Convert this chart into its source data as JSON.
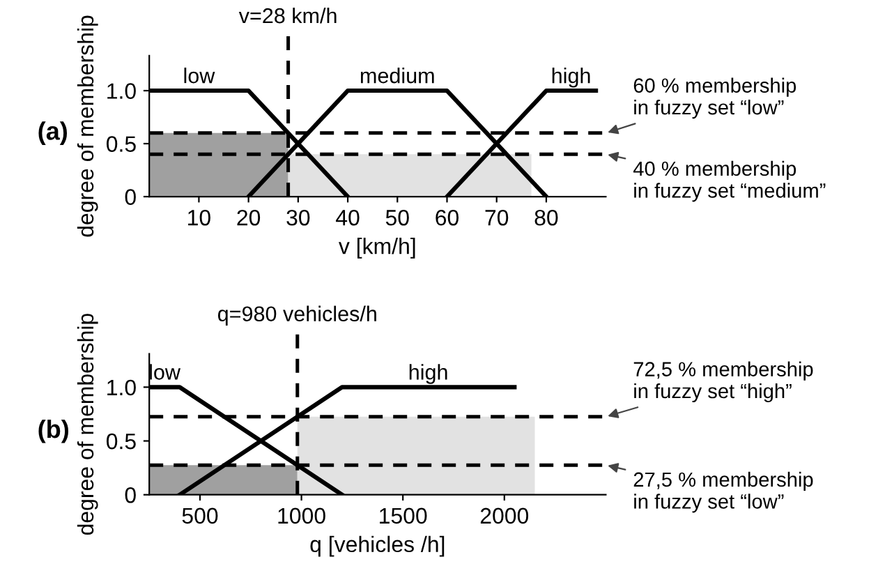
{
  "chart_data": [
    {
      "type": "line",
      "xlabel": "v [km/h]",
      "ylabel": "degree of membership",
      "xlim": [
        0,
        92
      ],
      "xticks": [
        10,
        20,
        30,
        40,
        50,
        60,
        70,
        80
      ],
      "ylim": [
        0,
        1.33
      ],
      "yticks": [
        0,
        0.5,
        {
          "value": 1,
          "label": "1.0"
        }
      ],
      "grid": false,
      "line_style": "solid",
      "marker": "none",
      "series": [
        {
          "type": "area",
          "color": "#a0a0a0",
          "x": [
            0,
            28
          ],
          "values": [
            0.6,
            0.6
          ]
        },
        {
          "type": "area",
          "color": "#e2e2e2",
          "x": [
            28,
            77
          ],
          "values": [
            0.4,
            0.4
          ]
        },
        {
          "name": "low",
          "color": "#000000",
          "x": [
            0,
            20,
            40
          ],
          "values": [
            1,
            1,
            0
          ]
        },
        {
          "name": "medium",
          "color": "#000000",
          "x": [
            20,
            40,
            60,
            80
          ],
          "values": [
            0,
            1,
            1,
            0
          ]
        },
        {
          "name": "high",
          "color": "#000000",
          "x": [
            60,
            80,
            90
          ],
          "values": [
            0,
            1,
            1
          ]
        }
      ],
      "ref_lines": [
        {
          "axis": "x",
          "value": 28,
          "label": "v=28 km/h",
          "line_style": "dashed",
          "color": "#000000"
        },
        {
          "axis": "y",
          "value": 0.6,
          "line_style": "dashed",
          "color": "#000000",
          "label": "60 % membership\nin fuzzy set “low”"
        },
        {
          "axis": "y",
          "value": 0.4,
          "line_style": "dashed",
          "color": "#000000",
          "label": "40 % membership\nin fuzzy set “medium”"
        }
      ],
      "annotations": [
        "(a)"
      ]
    },
    {
      "type": "line",
      "xlabel": "q [vehicles /h]",
      "ylabel": "degree of membership",
      "xlim": [
        250,
        2500
      ],
      "xticks": [
        500,
        1000,
        1500,
        2000
      ],
      "ylim": [
        0,
        1.31
      ],
      "yticks": [
        0,
        0.5,
        {
          "value": 1,
          "label": "1.0"
        }
      ],
      "grid": false,
      "line_style": "solid",
      "marker": "none",
      "series": [
        {
          "type": "area",
          "color": "#a0a0a0",
          "x": [
            250,
            980
          ],
          "values": [
            0.275,
            0.275
          ]
        },
        {
          "type": "area",
          "color": "#e2e2e2",
          "x": [
            980,
            2150
          ],
          "values": [
            0.725,
            0.725
          ]
        },
        {
          "name": "low",
          "color": "#000000",
          "x": [
            250,
            400,
            1200
          ],
          "values": [
            1,
            1,
            0
          ]
        },
        {
          "name": "high",
          "color": "#000000",
          "x": [
            400,
            1200,
            2050
          ],
          "values": [
            0,
            1,
            1
          ]
        }
      ],
      "ref_lines": [
        {
          "axis": "x",
          "value": 980,
          "label": "q=980 vehicles/h",
          "line_style": "dashed",
          "color": "#000000"
        },
        {
          "axis": "y",
          "value": 0.725,
          "line_style": "dashed",
          "color": "#000000",
          "label": "72,5 % membership\nin fuzzy set “high”"
        },
        {
          "axis": "y",
          "value": 0.275,
          "line_style": "dashed",
          "color": "#000000",
          "label": "27,5 % membership\nin fuzzy set “low”"
        }
      ],
      "annotations": [
        "(b)"
      ]
    }
  ]
}
